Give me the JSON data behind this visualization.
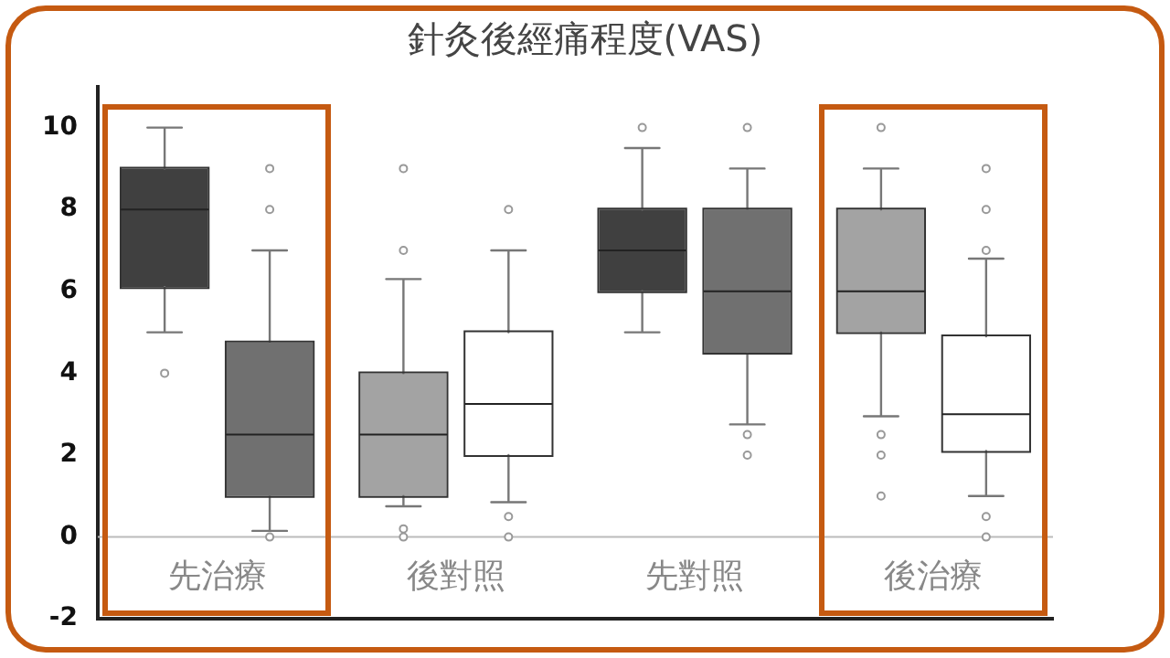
{
  "chart_data": {
    "type": "box",
    "title": "針灸後經痛程度(VAS)",
    "categories": [
      "先治療",
      "後對照",
      "先對照",
      "後治療"
    ],
    "series": [
      {
        "colors": [
          "#404040",
          "#a3a3a3",
          "#404040",
          "#a3a3a3"
        ],
        "boxes": [
          {
            "low": 5,
            "q1": 6.1,
            "median": 8,
            "q3": 9,
            "high": 10,
            "outliers": [
              4
            ]
          },
          {
            "low": 0.75,
            "q1": 1,
            "median": 2.5,
            "q3": 4,
            "high": 6.3,
            "outliers": [
              7,
              9,
              0.2,
              0
            ]
          },
          {
            "low": 5,
            "q1": 6,
            "median": 7,
            "q3": 8,
            "high": 9.5,
            "outliers": [
              10
            ]
          },
          {
            "low": 2.95,
            "q1": 5,
            "median": 6,
            "q3": 8,
            "high": 9,
            "outliers": [
              10,
              2.5,
              2,
              1
            ]
          }
        ]
      },
      {
        "colors": [
          "#707070",
          "#ffffff",
          "#707070",
          "#ffffff"
        ],
        "boxes": [
          {
            "low": 0.15,
            "q1": 1,
            "median": 2.5,
            "q3": 4.75,
            "high": 7,
            "outliers": [
              8,
              9,
              0
            ]
          },
          {
            "low": 0.85,
            "q1": 2,
            "median": 3.25,
            "q3": 5,
            "high": 7,
            "outliers": [
              8,
              0.5,
              0
            ]
          },
          {
            "low": 2.75,
            "q1": 4.5,
            "median": 6,
            "q3": 8,
            "high": 9,
            "outliers": [
              2.5,
              2,
              10
            ]
          },
          {
            "low": 1,
            "q1": 2.1,
            "median": 3,
            "q3": 4.9,
            "high": 6.8,
            "outliers": [
              7,
              8,
              9,
              0.5,
              0
            ]
          }
        ]
      }
    ],
    "ylim": [
      -2,
      11
    ],
    "yticks": [
      -2,
      0,
      2,
      4,
      6,
      8,
      10
    ],
    "grid": false,
    "legend": false,
    "ref_lines": [
      {
        "axis": "y",
        "value": 0,
        "color": "#bbbbbb"
      }
    ]
  }
}
